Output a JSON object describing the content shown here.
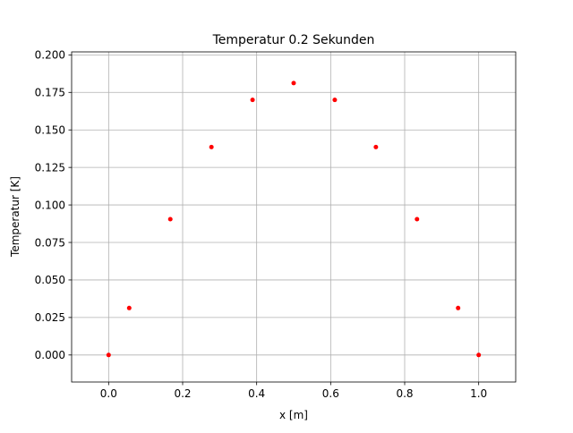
{
  "chart_data": {
    "type": "scatter",
    "title": "Temperatur 0.2 Sekunden",
    "xlabel": "x [m]",
    "ylabel": "Temperatur [K]",
    "xlim": [
      -0.1,
      1.1
    ],
    "ylim": [
      -0.018,
      0.202
    ],
    "xticks": [
      0.0,
      0.2,
      0.4,
      0.6,
      0.8,
      1.0
    ],
    "xtick_labels": [
      "0.0",
      "0.2",
      "0.4",
      "0.6",
      "0.8",
      "1.0"
    ],
    "yticks": [
      0.0,
      0.025,
      0.05,
      0.075,
      0.1,
      0.125,
      0.15,
      0.175,
      0.2
    ],
    "ytick_labels": [
      "0.000",
      "0.025",
      "0.050",
      "0.075",
      "0.100",
      "0.125",
      "0.150",
      "0.175",
      "0.200"
    ],
    "grid": true,
    "marker_color": "#ff0000",
    "series": [
      {
        "x": [
          0.0,
          0.0556,
          0.1667,
          0.2778,
          0.3889,
          0.5,
          0.6111,
          0.7222,
          0.8333,
          0.9444,
          1.0
        ],
        "y": [
          0.0,
          0.0313,
          0.0905,
          0.1386,
          0.17,
          0.1812,
          0.17,
          0.1386,
          0.0905,
          0.0313,
          0.0
        ]
      }
    ]
  }
}
